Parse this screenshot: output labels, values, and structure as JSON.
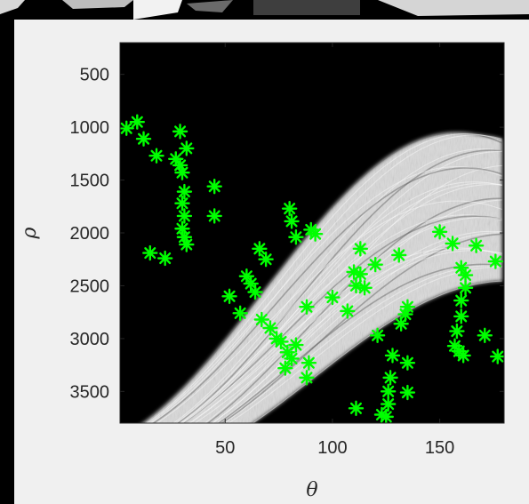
{
  "colors": {
    "figure_background": "#f0f0f0",
    "axes_background": "#000000",
    "marker": "#00ff00",
    "text": "#262626"
  },
  "chart_data": {
    "type": "scatter",
    "title": "",
    "xlabel": "θ",
    "ylabel": "ρ",
    "xlim": [
      1,
      180
    ],
    "ylim": [
      3800,
      200
    ],
    "y_reversed": true,
    "x_ticks": [
      50,
      100,
      150
    ],
    "y_ticks": [
      500,
      1000,
      1500,
      2000,
      2500,
      3000,
      3500
    ],
    "background_image": "hough-transform-accumulator",
    "marker": "asterisk",
    "series": [
      {
        "points": [
          [
            4,
            1010
          ],
          [
            9,
            950
          ],
          [
            12,
            1110
          ],
          [
            18,
            1270
          ],
          [
            15,
            2190
          ],
          [
            22,
            2240
          ],
          [
            27,
            1300
          ],
          [
            29,
            1360
          ],
          [
            29,
            1040
          ],
          [
            32,
            1200
          ],
          [
            30,
            1430
          ],
          [
            31,
            1610
          ],
          [
            30,
            1720
          ],
          [
            31,
            1840
          ],
          [
            30,
            1960
          ],
          [
            31,
            2040
          ],
          [
            32,
            2110
          ],
          [
            45,
            1560
          ],
          [
            45,
            1840
          ],
          [
            52,
            2600
          ],
          [
            57,
            2760
          ],
          [
            60,
            2410
          ],
          [
            62,
            2480
          ],
          [
            64,
            2560
          ],
          [
            66,
            2150
          ],
          [
            69,
            2250
          ],
          [
            67,
            2820
          ],
          [
            71,
            2900
          ],
          [
            74,
            3000
          ],
          [
            76,
            3030
          ],
          [
            79,
            3130
          ],
          [
            78,
            3280
          ],
          [
            81,
            3190
          ],
          [
            83,
            3060
          ],
          [
            80,
            1770
          ],
          [
            81,
            1890
          ],
          [
            83,
            2040
          ],
          [
            88,
            2700
          ],
          [
            89,
            3230
          ],
          [
            88,
            3370
          ],
          [
            90,
            1970
          ],
          [
            92,
            2010
          ],
          [
            100,
            2610
          ],
          [
            107,
            2740
          ],
          [
            110,
            2370
          ],
          [
            111,
            2500
          ],
          [
            113,
            2390
          ],
          [
            113,
            2150
          ],
          [
            115,
            2520
          ],
          [
            120,
            2300
          ],
          [
            121,
            2970
          ],
          [
            111,
            3660
          ],
          [
            123,
            3720
          ],
          [
            125,
            3740
          ],
          [
            126,
            3620
          ],
          [
            128,
            3160
          ],
          [
            127,
            3370
          ],
          [
            126,
            3500
          ],
          [
            131,
            2210
          ],
          [
            132,
            2860
          ],
          [
            134,
            2770
          ],
          [
            135,
            2700
          ],
          [
            135,
            3230
          ],
          [
            135,
            3510
          ],
          [
            150,
            1990
          ],
          [
            156,
            2100
          ],
          [
            160,
            2330
          ],
          [
            162,
            2400
          ],
          [
            162,
            2520
          ],
          [
            160,
            2640
          ],
          [
            160,
            2790
          ],
          [
            158,
            2930
          ],
          [
            157,
            3070
          ],
          [
            159,
            3120
          ],
          [
            161,
            3160
          ],
          [
            167,
            2120
          ],
          [
            171,
            2970
          ],
          [
            176,
            2270
          ],
          [
            177,
            3170
          ]
        ]
      }
    ]
  }
}
